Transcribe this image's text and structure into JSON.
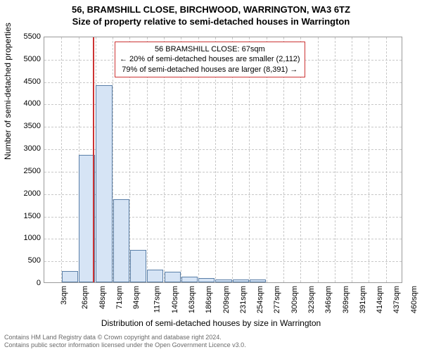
{
  "title_line1": "56, BRAMSHILL CLOSE, BIRCHWOOD, WARRINGTON, WA3 6TZ",
  "title_line2": "Size of property relative to semi-detached houses in Warrington",
  "ylabel": "Number of semi-detached properties",
  "xlabel": "Distribution of semi-detached houses by size in Warrington",
  "chart": {
    "type": "histogram",
    "ylim": [
      0,
      5500
    ],
    "ytick_step": 500,
    "xtick_labels": [
      "3sqm",
      "26sqm",
      "48sqm",
      "71sqm",
      "94sqm",
      "117sqm",
      "140sqm",
      "163sqm",
      "186sqm",
      "209sqm",
      "231sqm",
      "254sqm",
      "277sqm",
      "300sqm",
      "323sqm",
      "346sqm",
      "369sqm",
      "391sqm",
      "414sqm",
      "437sqm",
      "460sqm"
    ],
    "bar_fill": "#d6e4f5",
    "bar_stroke": "#5a7fa8",
    "grid_color": "#c8c8c8",
    "border_color": "#9a9a9a",
    "bars": [
      {
        "x_index": 1.5,
        "value": 250
      },
      {
        "x_index": 2.5,
        "value": 2850
      },
      {
        "x_index": 3.5,
        "value": 4400
      },
      {
        "x_index": 4.5,
        "value": 1850
      },
      {
        "x_index": 5.5,
        "value": 720
      },
      {
        "x_index": 6.5,
        "value": 280
      },
      {
        "x_index": 7.5,
        "value": 230
      },
      {
        "x_index": 8.5,
        "value": 120
      },
      {
        "x_index": 9.5,
        "value": 100
      },
      {
        "x_index": 10.5,
        "value": 70
      },
      {
        "x_index": 11.5,
        "value": 70
      },
      {
        "x_index": 12.5,
        "value": 60
      }
    ],
    "marker_x_index": 2.85,
    "marker_color": "#cc3333"
  },
  "info_box": {
    "line1": "56 BRAMSHILL CLOSE: 67sqm",
    "line2": "← 20% of semi-detached houses are smaller (2,112)",
    "line3": "79% of semi-detached houses are larger (8,391) →",
    "border_color": "#cc3333"
  },
  "footer_line1": "Contains HM Land Registry data © Crown copyright and database right 2024.",
  "footer_line2": "Contains public sector information licensed under the Open Government Licence v3.0."
}
